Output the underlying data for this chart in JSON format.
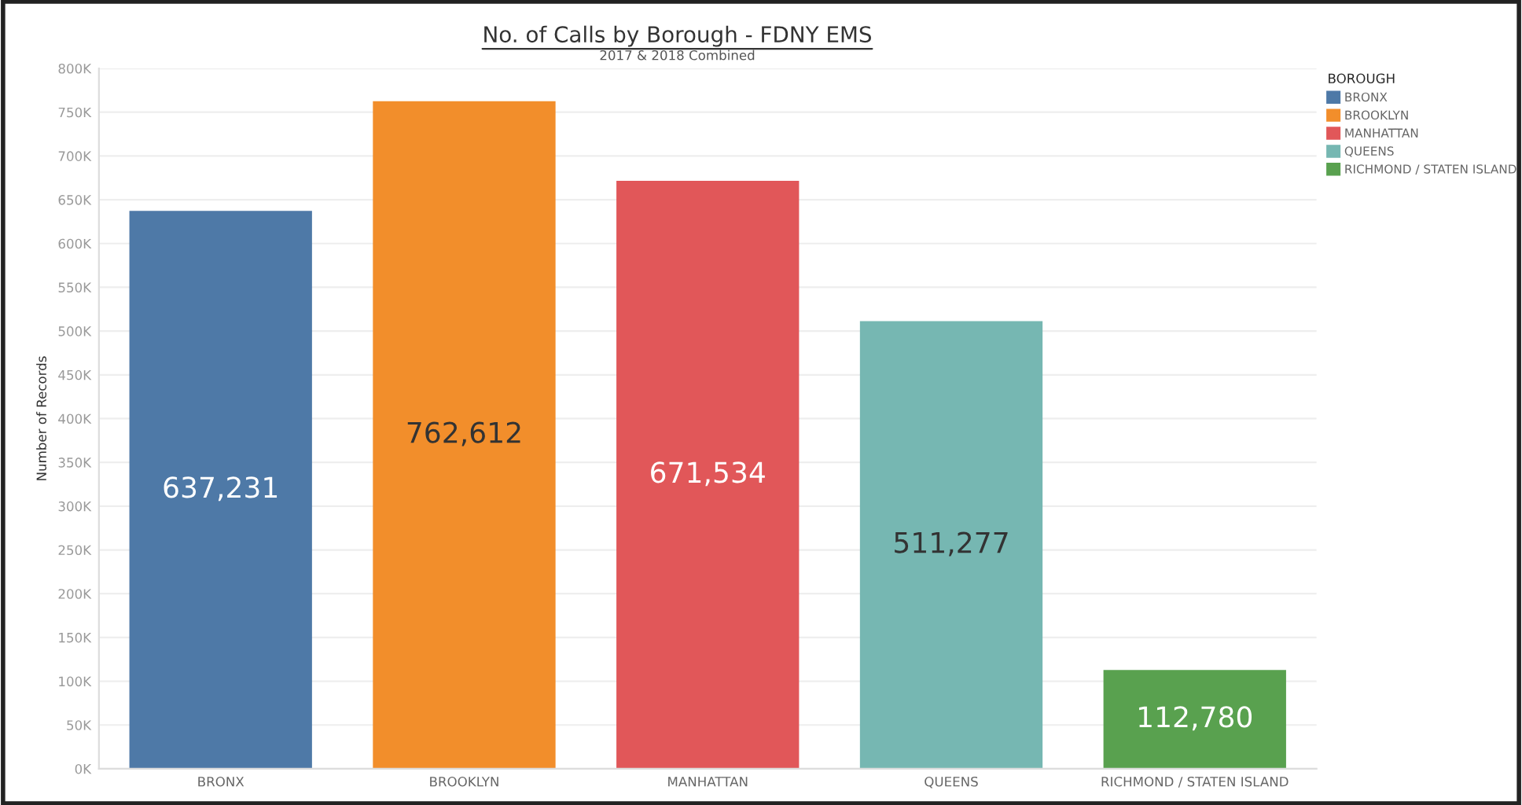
{
  "chart_data": {
    "type": "bar",
    "title": "No. of Calls by Borough - FDNY EMS",
    "subtitle": "2017 & 2018 Combined",
    "ylabel": "Number of Records",
    "legend_title": "BOROUGH",
    "categories": [
      "BRONX",
      "BROOKLYN",
      "MANHATTAN",
      "QUEENS",
      "RICHMOND / STATEN ISLAND"
    ],
    "series": [
      {
        "name": "BRONX",
        "color": "#4e79a7",
        "values": [
          637231,
          null,
          null,
          null,
          null
        ],
        "value_labels": [
          "637,231",
          null,
          null,
          null,
          null
        ]
      },
      {
        "name": "BROOKLYN",
        "color": "#f28e2b",
        "values": [
          null,
          762612,
          null,
          null,
          null
        ],
        "value_labels": [
          null,
          "762,612",
          null,
          null,
          null
        ]
      },
      {
        "name": "MANHATTAN",
        "color": "#e15759",
        "values": [
          null,
          null,
          671534,
          null,
          null
        ],
        "value_labels": [
          null,
          null,
          "671,534",
          null,
          null
        ]
      },
      {
        "name": "QUEENS",
        "color": "#76b7b2",
        "values": [
          null,
          null,
          null,
          511277,
          null
        ],
        "value_labels": [
          null,
          null,
          null,
          "511,277",
          null
        ]
      },
      {
        "name": "RICHMOND / STATEN ISLAND",
        "color": "#59a14f",
        "values": [
          null,
          null,
          null,
          null,
          112780
        ],
        "value_labels": [
          null,
          null,
          null,
          null,
          "112,780"
        ]
      }
    ],
    "ylim": [
      0,
      800000
    ],
    "yticks": [
      {
        "value": 0,
        "label": "0K"
      },
      {
        "value": 50000,
        "label": "50K"
      },
      {
        "value": 100000,
        "label": "100K"
      },
      {
        "value": 150000,
        "label": "150K"
      },
      {
        "value": 200000,
        "label": "200K"
      },
      {
        "value": 250000,
        "label": "250K"
      },
      {
        "value": 300000,
        "label": "300K"
      },
      {
        "value": 350000,
        "label": "350K"
      },
      {
        "value": 400000,
        "label": "400K"
      },
      {
        "value": 450000,
        "label": "450K"
      },
      {
        "value": 500000,
        "label": "500K"
      },
      {
        "value": 550000,
        "label": "550K"
      },
      {
        "value": 600000,
        "label": "600K"
      },
      {
        "value": 650000,
        "label": "650K"
      },
      {
        "value": 700000,
        "label": "700K"
      },
      {
        "value": 750000,
        "label": "750K"
      },
      {
        "value": 800000,
        "label": "800K"
      }
    ],
    "grid": "y",
    "legend": "top right"
  }
}
